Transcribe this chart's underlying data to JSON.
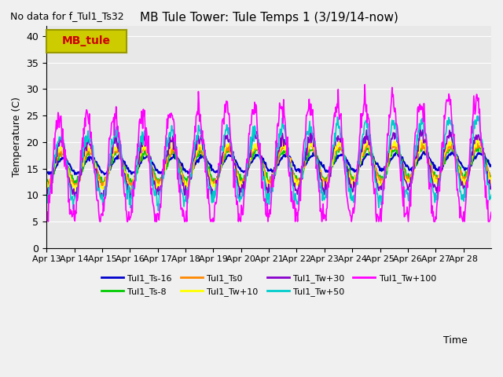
{
  "title": "MB Tule Tower: Tule Temps 1 (3/19/14-now)",
  "subtitle": "No data for f_Tul1_Ts32",
  "ylabel": "Temperature (C)",
  "xlabel": "Time",
  "ylim": [
    0,
    42
  ],
  "yticks": [
    0,
    5,
    10,
    15,
    20,
    25,
    30,
    35,
    40
  ],
  "bg_color": "#e8e8e8",
  "fig_color": "#f0f0f0",
  "legend_box_label": "MB_tule",
  "legend_box_color": "#cccc00",
  "legend_box_text_color": "#cc0000",
  "series": [
    {
      "label": "Tul1_Ts-16",
      "color": "#0000cc",
      "lw": 1.5
    },
    {
      "label": "Tul1_Ts-8",
      "color": "#00cc00",
      "lw": 1.2
    },
    {
      "label": "Tul1_Ts0",
      "color": "#ff8800",
      "lw": 1.2
    },
    {
      "label": "Tul1_Tw+10",
      "color": "#ffff00",
      "lw": 1.2
    },
    {
      "label": "Tul1_Tw+30",
      "color": "#8800cc",
      "lw": 1.2
    },
    {
      "label": "Tul1_Tw+50",
      "color": "#00cccc",
      "lw": 1.2
    },
    {
      "label": "Tul1_Tw+100",
      "color": "#ff00ff",
      "lw": 1.2
    }
  ],
  "xticklabels": [
    "Apr 13",
    "Apr 14",
    "Apr 15",
    "Apr 16",
    "Apr 17",
    "Apr 18",
    "Apr 19",
    "Apr 20",
    "Apr 21",
    "Apr 22",
    "Apr 23",
    "Apr 24",
    "Apr 25",
    "Apr 26",
    "Apr 27",
    "Apr 28"
  ],
  "n_days": 16,
  "pts_per_day": 48
}
